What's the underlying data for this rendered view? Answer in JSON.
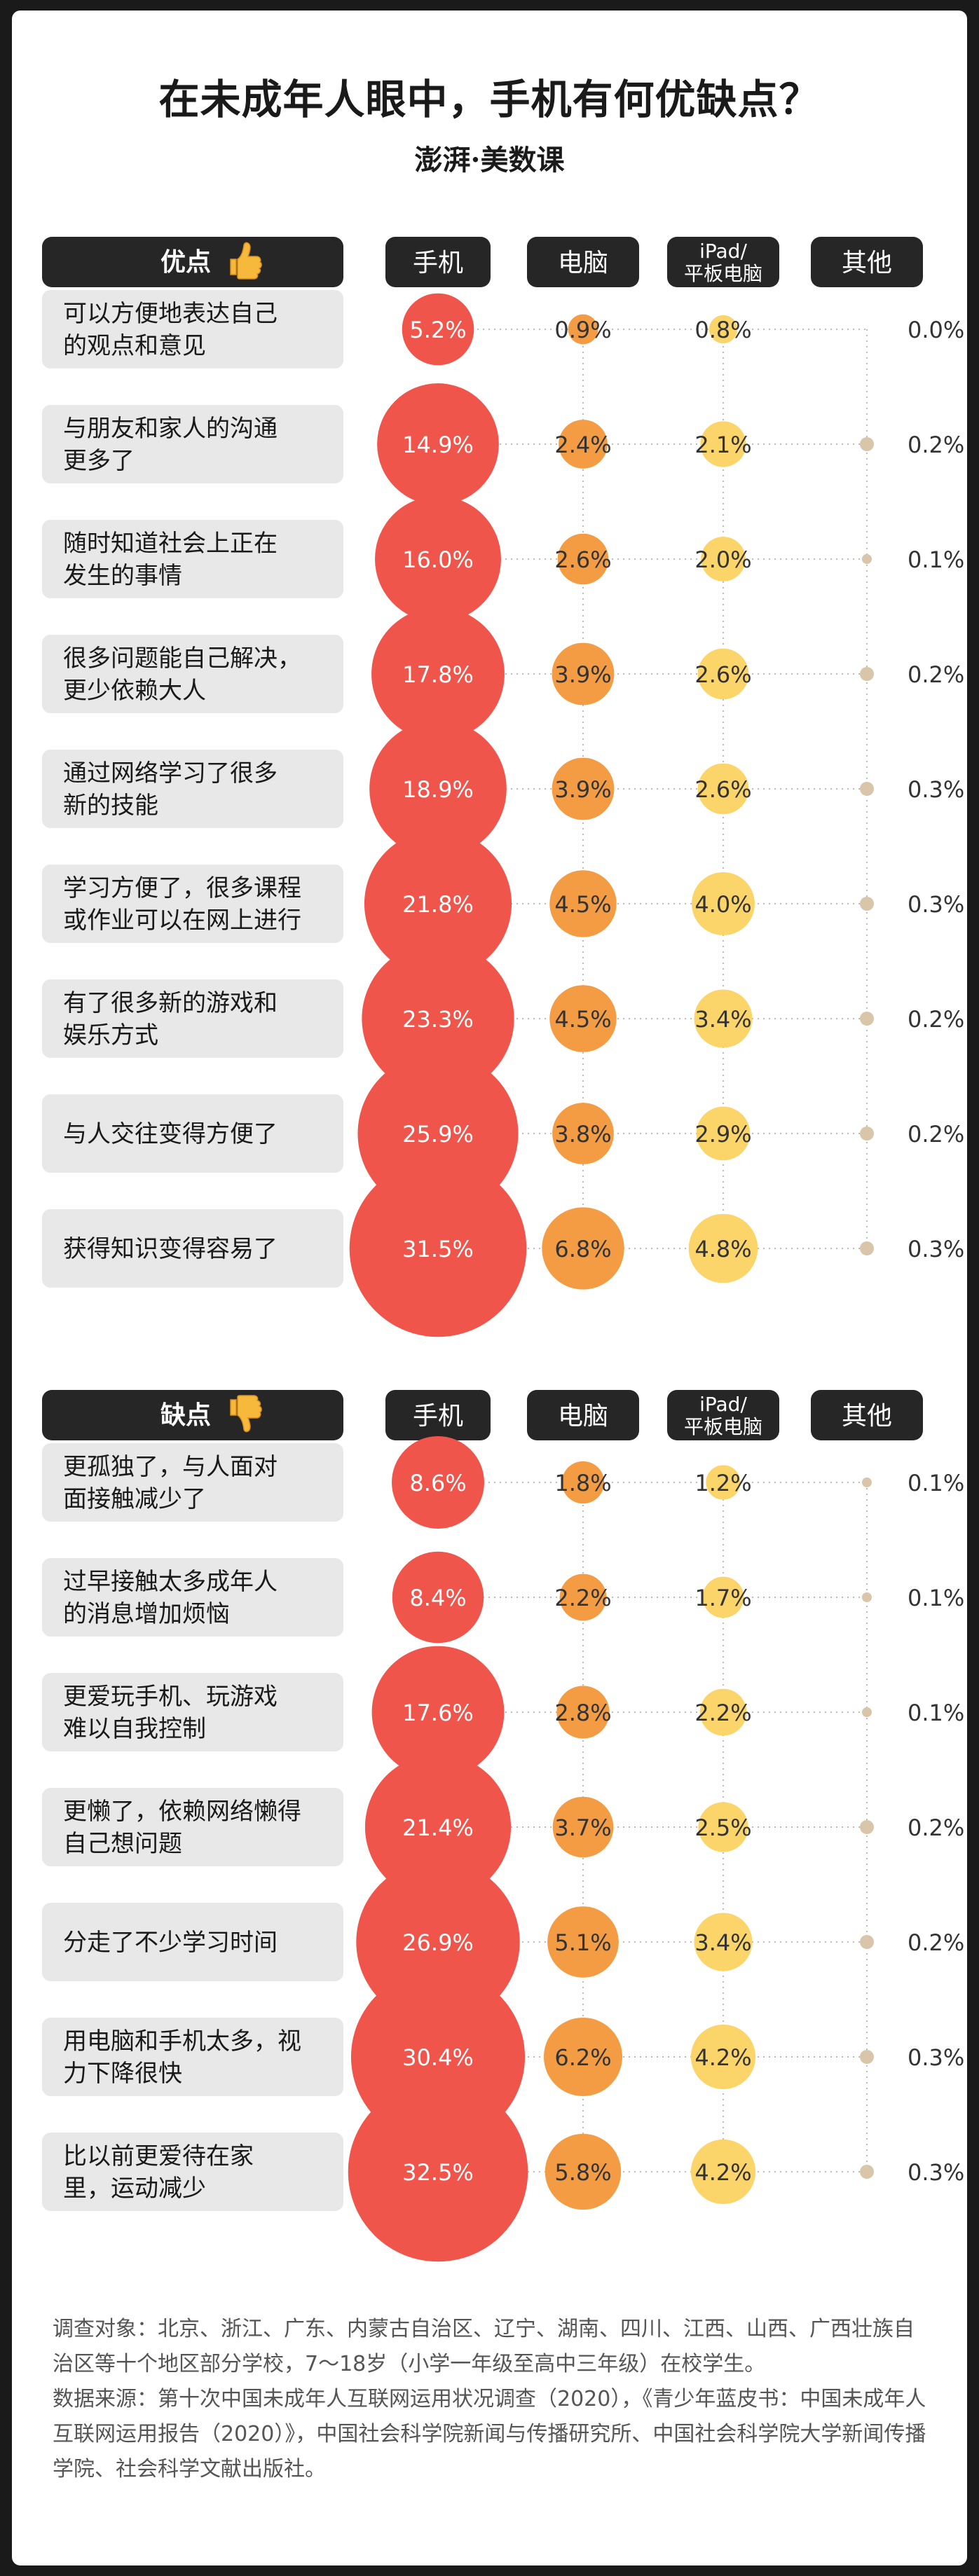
{
  "title": "在未成年人眼中，手机有何优缺点？",
  "logo": "澎湃·美数课",
  "footer": {
    "survey": "调查对象：北京、浙江、广东、内蒙古自治区、辽宁、湖南、四川、江西、山西、广西壮族自治区等十个地区部分学校，7～18岁（小学一年级至高中三年级）在校学生。",
    "source": "数据来源：第十次中国未成年人互联网运用状况调查（2020），《青少年蓝皮书：中国未成年人互联网运用报告（2020）》，中国社会科学院新闻与传播研究所、中国社会科学院大学新闻传播学院、社会科学文献出版社。"
  },
  "colors": {
    "phone": "#f0554b",
    "computer": "#f39c44",
    "tablet": "#fbd46a",
    "other": "#d9c5aa",
    "header": "#262626",
    "label_bg": "#e8e8e8"
  },
  "chart_data": [
    {
      "type": "bubble",
      "section_label": "优点",
      "section_icon": "thumbs-up-icon",
      "columns": [
        "手机",
        "电脑",
        "iPad/\n平板电脑",
        "其他"
      ],
      "categories": [
        "可以方便地表达自己\n的观点和意见",
        "与朋友和家人的沟通\n更多了",
        "随时知道社会上正在\n发生的事情",
        "很多问题能自己解决，\n更少依赖大人",
        "通过网络学习了很多\n新的技能",
        "学习方便了，很多课程\n或作业可以在网上进行",
        "有了很多新的游戏和\n娱乐方式",
        "与人交往变得方便了",
        "获得知识变得容易了"
      ],
      "series": [
        {
          "name": "手机",
          "values": [
            5.2,
            14.9,
            16.0,
            17.8,
            18.9,
            21.8,
            23.3,
            25.9,
            31.5
          ]
        },
        {
          "name": "电脑",
          "values": [
            0.9,
            2.4,
            2.6,
            3.9,
            3.9,
            4.5,
            4.5,
            3.8,
            6.8
          ]
        },
        {
          "name": "iPad/平板电脑",
          "values": [
            0.8,
            2.1,
            2.0,
            2.6,
            2.6,
            4.0,
            3.4,
            2.9,
            4.8
          ]
        },
        {
          "name": "其他",
          "values": [
            0.0,
            0.2,
            0.1,
            0.2,
            0.3,
            0.3,
            0.2,
            0.2,
            0.3
          ]
        }
      ],
      "unit": "%"
    },
    {
      "type": "bubble",
      "section_label": "缺点",
      "section_icon": "thumbs-down-icon",
      "columns": [
        "手机",
        "电脑",
        "iPad/\n平板电脑",
        "其他"
      ],
      "categories": [
        "更孤独了，与人面对\n面接触减少了",
        "过早接触太多成年人\n的消息增加烦恼",
        "更爱玩手机、玩游戏\n难以自我控制",
        "更懒了，依赖网络懒得\n自己想问题",
        "分走了不少学习时间",
        "用电脑和手机太多，视\n力下降很快",
        "比以前更爱待在家\n里，运动减少"
      ],
      "series": [
        {
          "name": "手机",
          "values": [
            8.6,
            8.4,
            17.6,
            21.4,
            26.9,
            30.4,
            32.5
          ]
        },
        {
          "name": "电脑",
          "values": [
            1.8,
            2.2,
            2.8,
            3.7,
            5.1,
            6.2,
            5.8
          ]
        },
        {
          "name": "iPad/平板电脑",
          "values": [
            1.2,
            1.7,
            2.2,
            2.5,
            3.4,
            4.2,
            4.2
          ]
        },
        {
          "name": "其他",
          "values": [
            0.1,
            0.1,
            0.1,
            0.2,
            0.2,
            0.3,
            0.3
          ]
        }
      ],
      "unit": "%"
    }
  ]
}
